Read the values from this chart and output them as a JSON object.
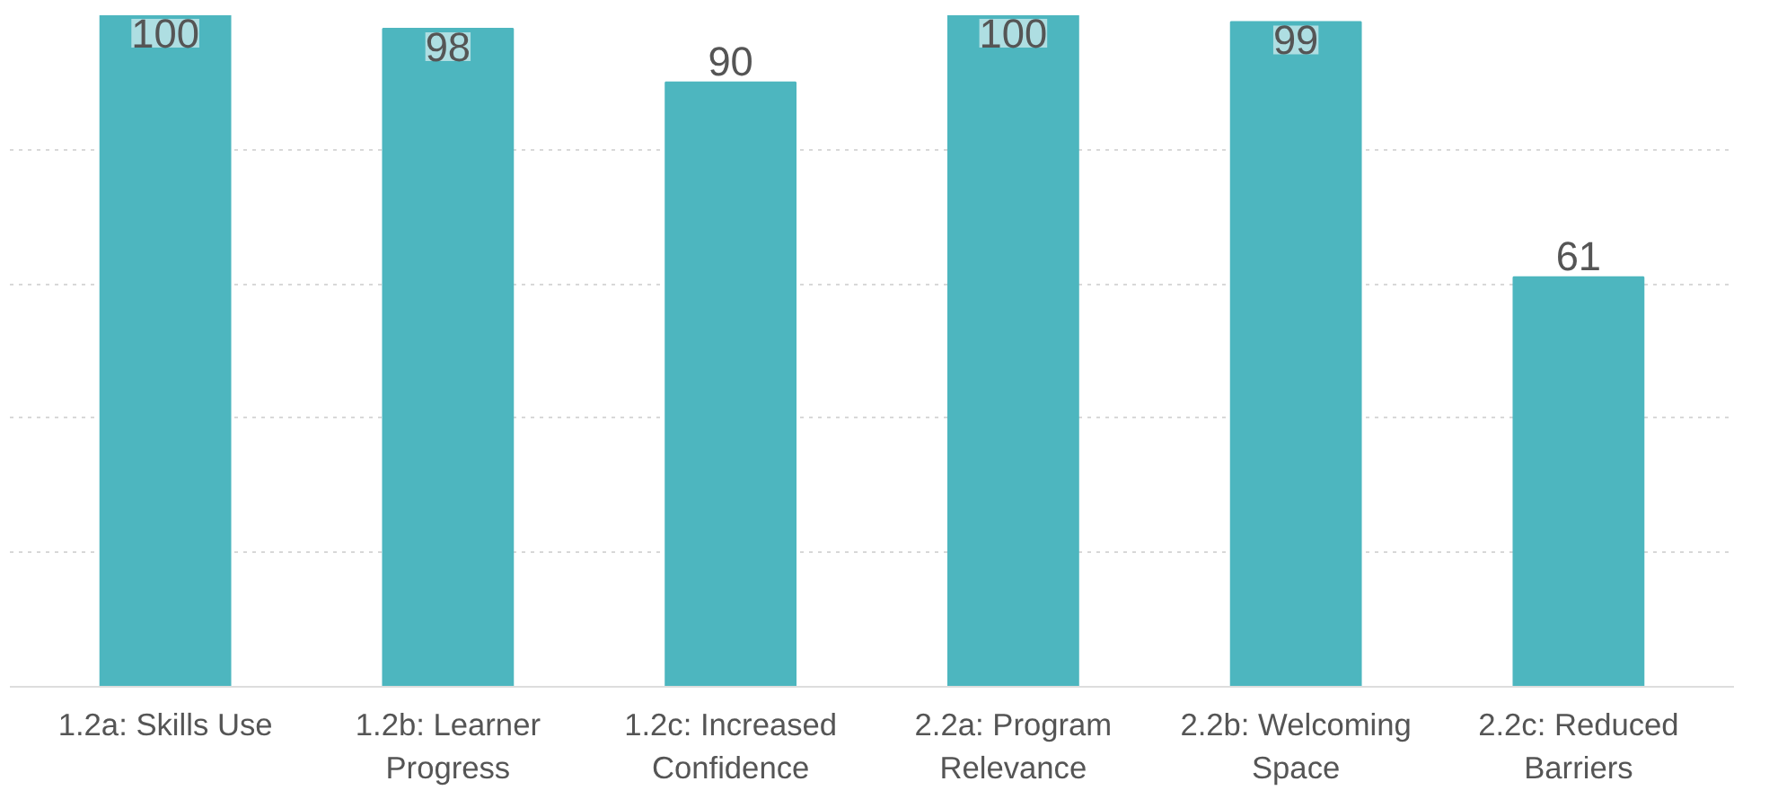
{
  "chart_data": {
    "type": "bar",
    "categories": [
      "1.2a: Skills Use",
      "1.2b: Learner Progress",
      "1.2c: Increased Confidence",
      "2.2a: Program Relevance",
      "2.2b: Welcoming Space",
      "2.2c: Reduced Barriers"
    ],
    "values": [
      100,
      98,
      90,
      100,
      99,
      61
    ],
    "color": "#4db6bf",
    "data_labels": true,
    "ylim": [
      0,
      100
    ],
    "grid": "y",
    "tick_labels": "x"
  }
}
